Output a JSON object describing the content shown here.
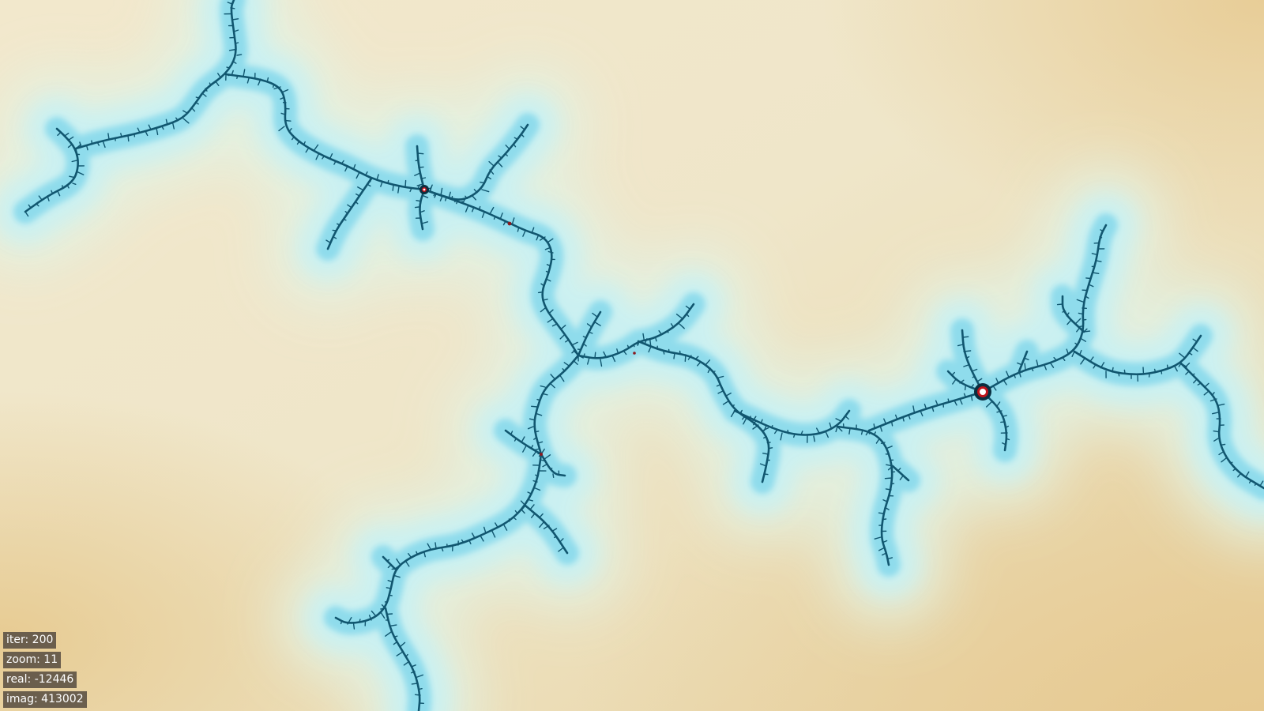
{
  "viewer": {
    "iter": "iter: 200",
    "zoom": "zoom: 11",
    "real": "real: -12446",
    "imag": "imag: 413002"
  },
  "palette": {
    "background_far": "#ead29f",
    "background_mid": "#f0e4c2",
    "background_near": "#e2f1e2",
    "glow_outer": "#c9f1f3",
    "glow_inner": "#8fdcec",
    "filament": "#11566f",
    "filament_dark": "#0a2f40",
    "core_center": "#ffffff",
    "core_ring": "#c0141c",
    "hud_bg": "#5f5546",
    "hud_text": "#ffffff"
  },
  "fractal": {
    "name": "julia-set-filament",
    "cores": [
      "primary",
      "secondary",
      "minor"
    ]
  }
}
